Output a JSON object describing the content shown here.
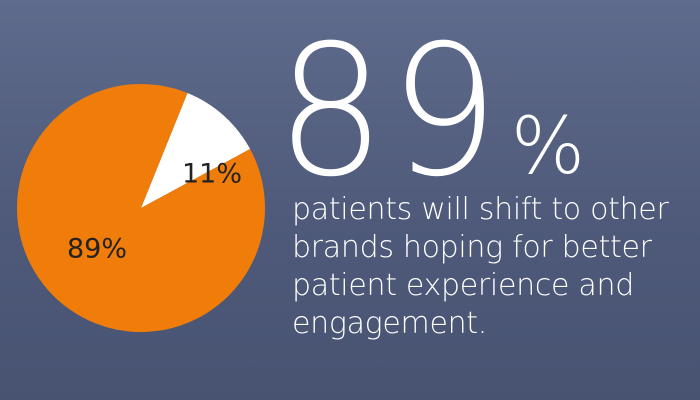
{
  "chart_data": {
    "type": "pie",
    "slices": [
      {
        "label": "11%",
        "value": 11,
        "color": "#ffffff",
        "text_color": "#222222"
      },
      {
        "label": "89%",
        "value": 89,
        "color": "#f07d0a",
        "text_color": "#222222"
      }
    ]
  },
  "headline": {
    "number": "89",
    "percent_sign": "%"
  },
  "caption": {
    "lines": [
      "patients will shift to other",
      "brands hoping for better",
      "patient experience and",
      "engagement."
    ]
  }
}
